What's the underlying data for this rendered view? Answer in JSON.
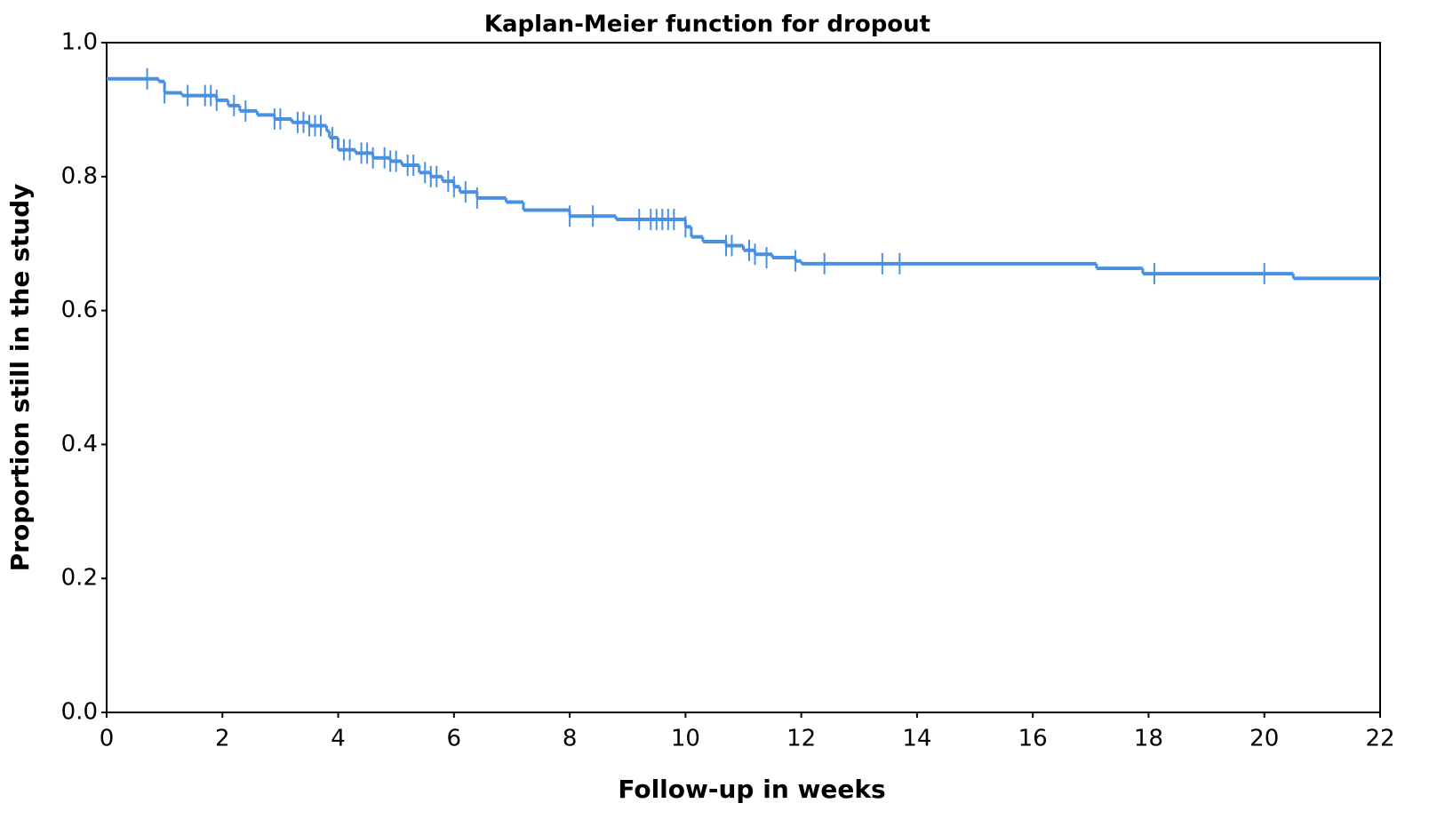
{
  "chart_data": {
    "type": "step",
    "title": "Kaplan-Meier function for dropout",
    "x_label": "Follow-up in weeks",
    "y_label": "Proportion still in the study",
    "color": "#4a90e2",
    "x": [
      0,
      0.9,
      1.0,
      1.3,
      1.9,
      2.1,
      2.3,
      2.6,
      2.9,
      3.2,
      3.5,
      3.8,
      3.85,
      4.0,
      4.3,
      4.6,
      4.9,
      5.1,
      5.4,
      5.6,
      5.8,
      6.0,
      6.1,
      6.4,
      6.9,
      7.2,
      8.0,
      8.8,
      10.0,
      10.1,
      10.3,
      10.7,
      11.0,
      11.2,
      11.5,
      11.9,
      12.0,
      17.1,
      17.9,
      20.5
    ],
    "values": [
      0.946,
      0.942,
      0.925,
      0.921,
      0.914,
      0.906,
      0.898,
      0.892,
      0.886,
      0.881,
      0.876,
      0.868,
      0.858,
      0.84,
      0.835,
      0.828,
      0.823,
      0.817,
      0.806,
      0.8,
      0.793,
      0.785,
      0.777,
      0.768,
      0.762,
      0.75,
      0.741,
      0.736,
      0.725,
      0.71,
      0.703,
      0.697,
      0.69,
      0.684,
      0.679,
      0.674,
      0.67,
      0.663,
      0.655,
      0.648
    ],
    "censored": {
      "x": [
        0.7,
        1.0,
        1.4,
        1.7,
        1.8,
        1.9,
        2.2,
        2.4,
        2.9,
        3.0,
        3.3,
        3.4,
        3.5,
        3.6,
        3.7,
        3.9,
        4.1,
        4.2,
        4.4,
        4.5,
        4.6,
        4.8,
        4.9,
        5.0,
        5.2,
        5.3,
        5.5,
        5.6,
        5.7,
        5.9,
        6.0,
        6.2,
        6.4,
        8.0,
        8.4,
        9.2,
        9.4,
        9.5,
        9.6,
        9.7,
        9.8,
        10.0,
        10.7,
        10.8,
        11.1,
        11.2,
        11.4,
        11.9,
        12.4,
        13.4,
        13.7,
        18.1,
        20.0
      ],
      "values": [
        0.946,
        0.925,
        0.921,
        0.921,
        0.921,
        0.914,
        0.906,
        0.898,
        0.886,
        0.886,
        0.881,
        0.881,
        0.876,
        0.876,
        0.876,
        0.858,
        0.84,
        0.84,
        0.835,
        0.835,
        0.828,
        0.828,
        0.823,
        0.823,
        0.817,
        0.817,
        0.806,
        0.8,
        0.8,
        0.793,
        0.785,
        0.777,
        0.768,
        0.741,
        0.741,
        0.736,
        0.736,
        0.736,
        0.736,
        0.736,
        0.736,
        0.725,
        0.697,
        0.697,
        0.69,
        0.684,
        0.679,
        0.674,
        0.67,
        0.67,
        0.67,
        0.655,
        0.655
      ]
    },
    "xlim": [
      0,
      22
    ],
    "xticks": [
      0,
      2,
      4,
      6,
      8,
      10,
      12,
      14,
      16,
      18,
      20,
      22
    ],
    "ylim": [
      0,
      1
    ],
    "yticks": [
      {
        "value": 0,
        "label": "0.0"
      },
      0.2,
      0.4,
      0.6,
      0.8,
      {
        "value": 1,
        "label": "1.0"
      }
    ],
    "grid": false
  }
}
